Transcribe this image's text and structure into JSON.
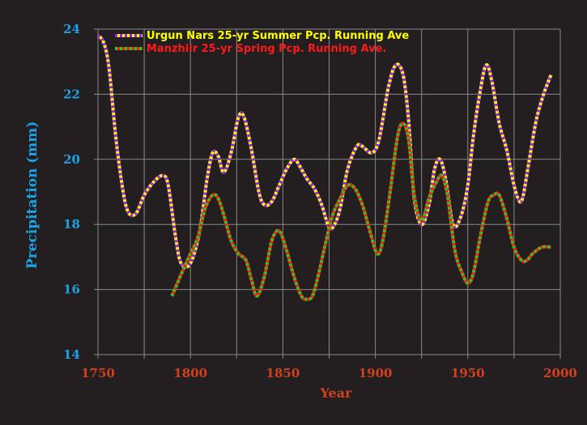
{
  "chart_data": {
    "type": "line",
    "title": "",
    "xlabel": "Year",
    "ylabel": "Precipitation (mm)",
    "xlim": [
      1750,
      2000
    ],
    "ylim": [
      14,
      24
    ],
    "xticks": [
      "1750",
      "1800",
      "1850",
      "1900",
      "1950",
      "2000"
    ],
    "yticks": [
      "14",
      "16",
      "18",
      "20",
      "22",
      "24"
    ],
    "grid": true,
    "legend_position": "top-left",
    "colors": {
      "background": "#231f20",
      "grid": "#8a8a8a",
      "axis_tick_x": "#d4401e",
      "axis_tick_y": "#1aa3e6"
    },
    "series": [
      {
        "name": "Urgun Nars 25-yr Summer Pcp. Running Ave",
        "color_a": "#ffff00",
        "color_b": "#a020f0",
        "x": [
          1750,
          1753,
          1756,
          1760,
          1765,
          1770,
          1775,
          1780,
          1785,
          1788,
          1792,
          1795,
          1800,
          1805,
          1809,
          1812,
          1815,
          1818,
          1822,
          1826,
          1829,
          1833,
          1837,
          1840,
          1844,
          1848,
          1852,
          1856,
          1859,
          1863,
          1867,
          1871,
          1875,
          1878,
          1881,
          1885,
          1890,
          1893,
          1898,
          1902,
          1907,
          1911,
          1915,
          1918,
          1921,
          1925,
          1929,
          1932,
          1935,
          1938,
          1942,
          1946,
          1950,
          1953,
          1957,
          1960,
          1963,
          1967,
          1971,
          1975,
          1978,
          1980,
          1983,
          1987,
          1991,
          1995
        ],
        "y": [
          23.8,
          23.6,
          22.8,
          20.5,
          18.6,
          18.3,
          18.9,
          19.3,
          19.5,
          19.2,
          17.6,
          16.8,
          16.8,
          17.8,
          19.4,
          20.2,
          20.1,
          19.6,
          20.2,
          21.3,
          21.3,
          20.3,
          19.0,
          18.6,
          18.7,
          19.2,
          19.7,
          20.0,
          19.8,
          19.4,
          19.1,
          18.6,
          17.9,
          18.0,
          18.5,
          19.7,
          20.4,
          20.4,
          20.2,
          20.6,
          22.2,
          22.9,
          22.6,
          21.2,
          18.8,
          18.0,
          18.6,
          19.7,
          20.0,
          19.4,
          18.0,
          18.2,
          19.2,
          20.7,
          22.2,
          22.9,
          22.4,
          21.1,
          20.3,
          19.2,
          18.7,
          18.9,
          19.9,
          21.2,
          22.0,
          22.6
        ]
      },
      {
        "name": "Manzhiir 25-yr Spring Pcp. Running Ave.",
        "color_a": "#ff1a1a",
        "color_b": "#22cc22",
        "x": [
          1790,
          1793,
          1796,
          1800,
          1804,
          1808,
          1812,
          1815,
          1818,
          1822,
          1826,
          1830,
          1833,
          1836,
          1840,
          1844,
          1848,
          1852,
          1856,
          1860,
          1863,
          1866,
          1869,
          1873,
          1877,
          1881,
          1885,
          1889,
          1893,
          1897,
          1901,
          1904,
          1908,
          1912,
          1915,
          1918,
          1921,
          1925,
          1929,
          1933,
          1936,
          1939,
          1943,
          1947,
          1950,
          1953,
          1957,
          1961,
          1964,
          1967,
          1971,
          1975,
          1979,
          1982,
          1985,
          1990,
          1995
        ],
        "y": [
          15.8,
          16.2,
          16.6,
          17.1,
          17.6,
          18.5,
          18.9,
          18.8,
          18.3,
          17.5,
          17.1,
          16.9,
          16.3,
          15.8,
          16.4,
          17.5,
          17.8,
          17.2,
          16.4,
          15.8,
          15.7,
          15.8,
          16.4,
          17.4,
          18.3,
          18.8,
          19.2,
          19.1,
          18.6,
          17.8,
          17.1,
          17.5,
          19.0,
          20.7,
          21.1,
          20.6,
          18.9,
          18.1,
          18.8,
          19.3,
          19.5,
          18.9,
          17.2,
          16.5,
          16.2,
          16.5,
          17.7,
          18.7,
          18.9,
          18.9,
          18.2,
          17.3,
          16.9,
          16.9,
          17.1,
          17.3,
          17.3
        ]
      }
    ]
  }
}
